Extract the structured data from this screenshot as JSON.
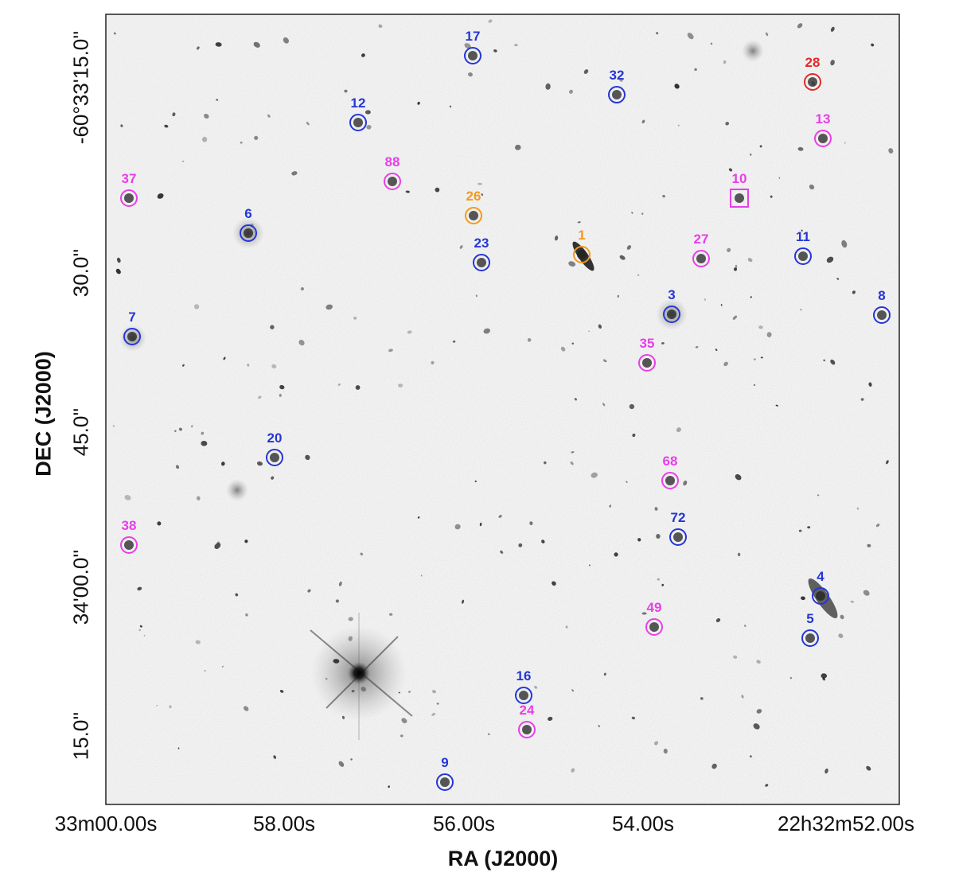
{
  "axes": {
    "xlabel": "RA (J2000)",
    "ylabel": "DEC (J2000)",
    "xticks": [
      "33m00.00s",
      "58.00s",
      "56.00s",
      "54.00s",
      "22h32m52.00s"
    ],
    "yticks": [
      "-60°33'15.0''",
      "30.0''",
      "45.0''",
      "34'00.0''",
      "15.0''"
    ]
  },
  "colors": {
    "blue": "#2436d6",
    "magenta": "#e83ee8",
    "orange": "#f39a1c",
    "red": "#e12a2a"
  },
  "markers": [
    {
      "id": "17",
      "color": "blue",
      "shape": "circle"
    },
    {
      "id": "28",
      "color": "red",
      "shape": "circle"
    },
    {
      "id": "32",
      "color": "blue",
      "shape": "circle"
    },
    {
      "id": "12",
      "color": "blue",
      "shape": "circle"
    },
    {
      "id": "13",
      "color": "magenta",
      "shape": "circle"
    },
    {
      "id": "88",
      "color": "magenta",
      "shape": "circle"
    },
    {
      "id": "37",
      "color": "magenta",
      "shape": "circle"
    },
    {
      "id": "10",
      "color": "magenta",
      "shape": "square"
    },
    {
      "id": "26",
      "color": "orange",
      "shape": "circle"
    },
    {
      "id": "6",
      "color": "blue",
      "shape": "circle"
    },
    {
      "id": "1",
      "color": "orange",
      "shape": "circle"
    },
    {
      "id": "27",
      "color": "magenta",
      "shape": "circle"
    },
    {
      "id": "11",
      "color": "blue",
      "shape": "circle"
    },
    {
      "id": "23",
      "color": "blue",
      "shape": "circle"
    },
    {
      "id": "3",
      "color": "blue",
      "shape": "circle"
    },
    {
      "id": "8",
      "color": "blue",
      "shape": "circle"
    },
    {
      "id": "7",
      "color": "blue",
      "shape": "circle"
    },
    {
      "id": "35",
      "color": "magenta",
      "shape": "circle"
    },
    {
      "id": "20",
      "color": "blue",
      "shape": "circle"
    },
    {
      "id": "68",
      "color": "magenta",
      "shape": "circle"
    },
    {
      "id": "72",
      "color": "blue",
      "shape": "circle"
    },
    {
      "id": "38",
      "color": "magenta",
      "shape": "circle"
    },
    {
      "id": "4",
      "color": "blue",
      "shape": "circle"
    },
    {
      "id": "49",
      "color": "magenta",
      "shape": "circle"
    },
    {
      "id": "5",
      "color": "blue",
      "shape": "circle"
    },
    {
      "id": "16",
      "color": "blue",
      "shape": "circle"
    },
    {
      "id": "24",
      "color": "magenta",
      "shape": "circle"
    },
    {
      "id": "9",
      "color": "blue",
      "shape": "circle"
    }
  ]
}
